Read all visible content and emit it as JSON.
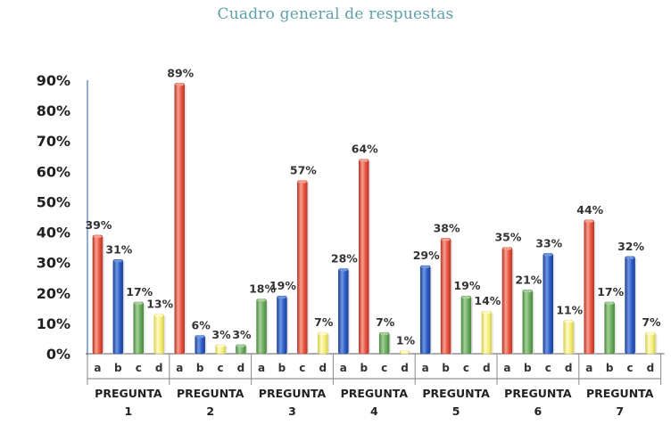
{
  "title": "Cuadro general de respuestas",
  "chart_data": {
    "type": "bar",
    "title": "Cuadro general de respuestas",
    "ylim": [
      0,
      90
    ],
    "yticks": [
      "0%",
      "10%",
      "20%",
      "30%",
      "40%",
      "50%",
      "60%",
      "70%",
      "80%",
      "90%"
    ],
    "options": [
      "a",
      "b",
      "c",
      "d"
    ],
    "groups": [
      {
        "label": "PREGUNTA",
        "number": "1",
        "bars": [
          {
            "option": "a",
            "value": 39,
            "label": "39%",
            "color": "red"
          },
          {
            "option": "b",
            "value": 31,
            "label": "31%",
            "color": "blue"
          },
          {
            "option": "c",
            "value": 17,
            "label": "17%",
            "color": "green"
          },
          {
            "option": "d",
            "value": 13,
            "label": "13%",
            "color": "yellow"
          }
        ]
      },
      {
        "label": "PREGUNTA",
        "number": "2",
        "bars": [
          {
            "option": "a",
            "value": 89,
            "label": "89%",
            "color": "red"
          },
          {
            "option": "b",
            "value": 6,
            "label": "6%",
            "color": "blue"
          },
          {
            "option": "c",
            "value": 3,
            "label": "3%",
            "color": "yellow"
          },
          {
            "option": "d",
            "value": 3,
            "label": "3%",
            "color": "green"
          }
        ]
      },
      {
        "label": "PREGUNTA",
        "number": "3",
        "bars": [
          {
            "option": "a",
            "value": 18,
            "label": "18%",
            "color": "green"
          },
          {
            "option": "b",
            "value": 19,
            "label": "19%",
            "color": "blue"
          },
          {
            "option": "c",
            "value": 57,
            "label": "57%",
            "color": "red"
          },
          {
            "option": "d",
            "value": 7,
            "label": "7%",
            "color": "yellow"
          }
        ]
      },
      {
        "label": "PREGUNTA",
        "number": "4",
        "bars": [
          {
            "option": "a",
            "value": 28,
            "label": "28%",
            "color": "blue"
          },
          {
            "option": "b",
            "value": 64,
            "label": "64%",
            "color": "red"
          },
          {
            "option": "c",
            "value": 7,
            "label": "7%",
            "color": "green"
          },
          {
            "option": "d",
            "value": 1,
            "label": "1%",
            "color": "yellow"
          }
        ]
      },
      {
        "label": "PREGUNTA",
        "number": "5",
        "bars": [
          {
            "option": "a",
            "value": 29,
            "label": "29%",
            "color": "blue"
          },
          {
            "option": "b",
            "value": 38,
            "label": "38%",
            "color": "red"
          },
          {
            "option": "c",
            "value": 19,
            "label": "19%",
            "color": "green"
          },
          {
            "option": "d",
            "value": 14,
            "label": "14%",
            "color": "yellow"
          }
        ]
      },
      {
        "label": "PREGUNTA",
        "number": "6",
        "bars": [
          {
            "option": "a",
            "value": 35,
            "label": "35%",
            "color": "red"
          },
          {
            "option": "b",
            "value": 21,
            "label": "21%",
            "color": "green"
          },
          {
            "option": "c",
            "value": 33,
            "label": "33%",
            "color": "blue"
          },
          {
            "option": "d",
            "value": 11,
            "label": "11%",
            "color": "yellow"
          }
        ]
      },
      {
        "label": "PREGUNTA",
        "number": "7",
        "bars": [
          {
            "option": "a",
            "value": 44,
            "label": "44%",
            "color": "red"
          },
          {
            "option": "b",
            "value": 17,
            "label": "17%",
            "color": "green"
          },
          {
            "option": "c",
            "value": 32,
            "label": "32%",
            "color": "blue"
          },
          {
            "option": "d",
            "value": 7,
            "label": "7%",
            "color": "yellow"
          }
        ]
      }
    ],
    "palette": {
      "red": {
        "light": "#f7a08f",
        "base": "#e8513f",
        "dark": "#b8382a"
      },
      "blue": {
        "light": "#7196e0",
        "base": "#2c5cc8",
        "dark": "#1d4296"
      },
      "green": {
        "light": "#a8cf9c",
        "base": "#6aaa5c",
        "dark": "#4a8a40"
      },
      "yellow": {
        "light": "#fffbc8",
        "base": "#f5ee7a",
        "dark": "#d8d052"
      }
    },
    "axis_color": "#6b8fc8",
    "grid": false
  }
}
